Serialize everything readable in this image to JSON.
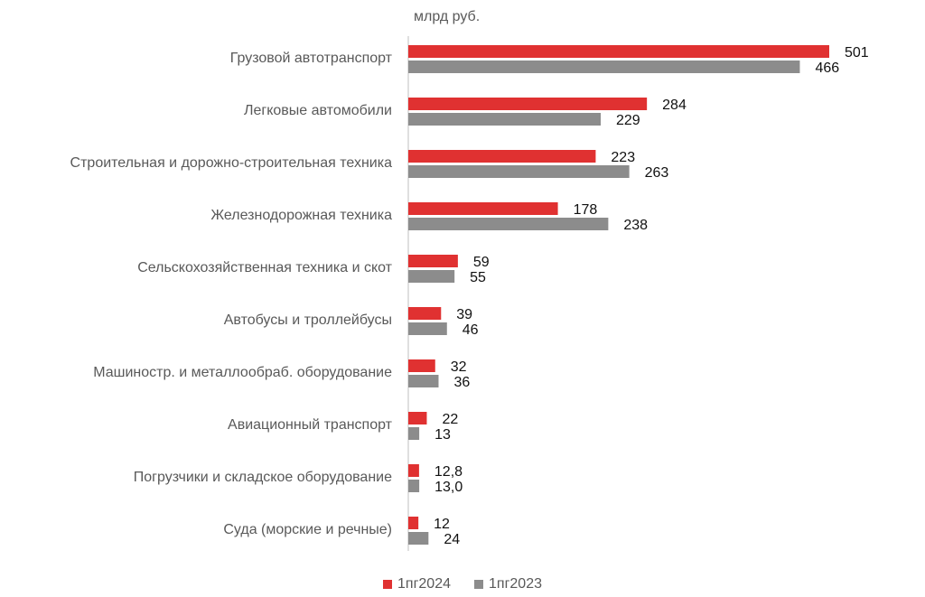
{
  "chart_data": {
    "type": "bar",
    "orientation": "horizontal",
    "unit_label": "млрд руб.",
    "categories": [
      "Грузовой автотранспорт",
      "Легковые автомобили",
      "Строительная и дорожно-строительная техника",
      "Железнодорожная техника",
      "Сельскохозяйственная техника и скот",
      "Автобусы и троллейбусы",
      "Машиностр. и металлообраб. оборудование",
      "Авиационный транспорт",
      "Погрузчики и складское оборудование",
      "Суда (морские и речные)"
    ],
    "series": [
      {
        "name": "1пг2024",
        "color": "#e03131",
        "values": [
          501,
          284,
          223,
          178,
          59,
          39,
          32,
          22,
          12.8,
          12
        ],
        "labels": [
          "501",
          "284",
          "223",
          "178",
          "59",
          "39",
          "32",
          "22",
          "12,8",
          "12"
        ]
      },
      {
        "name": "1пг2023",
        "color": "#8c8c8c",
        "values": [
          466,
          229,
          263,
          238,
          55,
          46,
          36,
          13,
          13.0,
          24
        ],
        "labels": [
          "466",
          "229",
          "263",
          "238",
          "55",
          "46",
          "36",
          "13",
          "13,0",
          "24"
        ]
      }
    ],
    "xlim": [
      0,
      501
    ],
    "grid": false,
    "legend_position": "bottom"
  }
}
